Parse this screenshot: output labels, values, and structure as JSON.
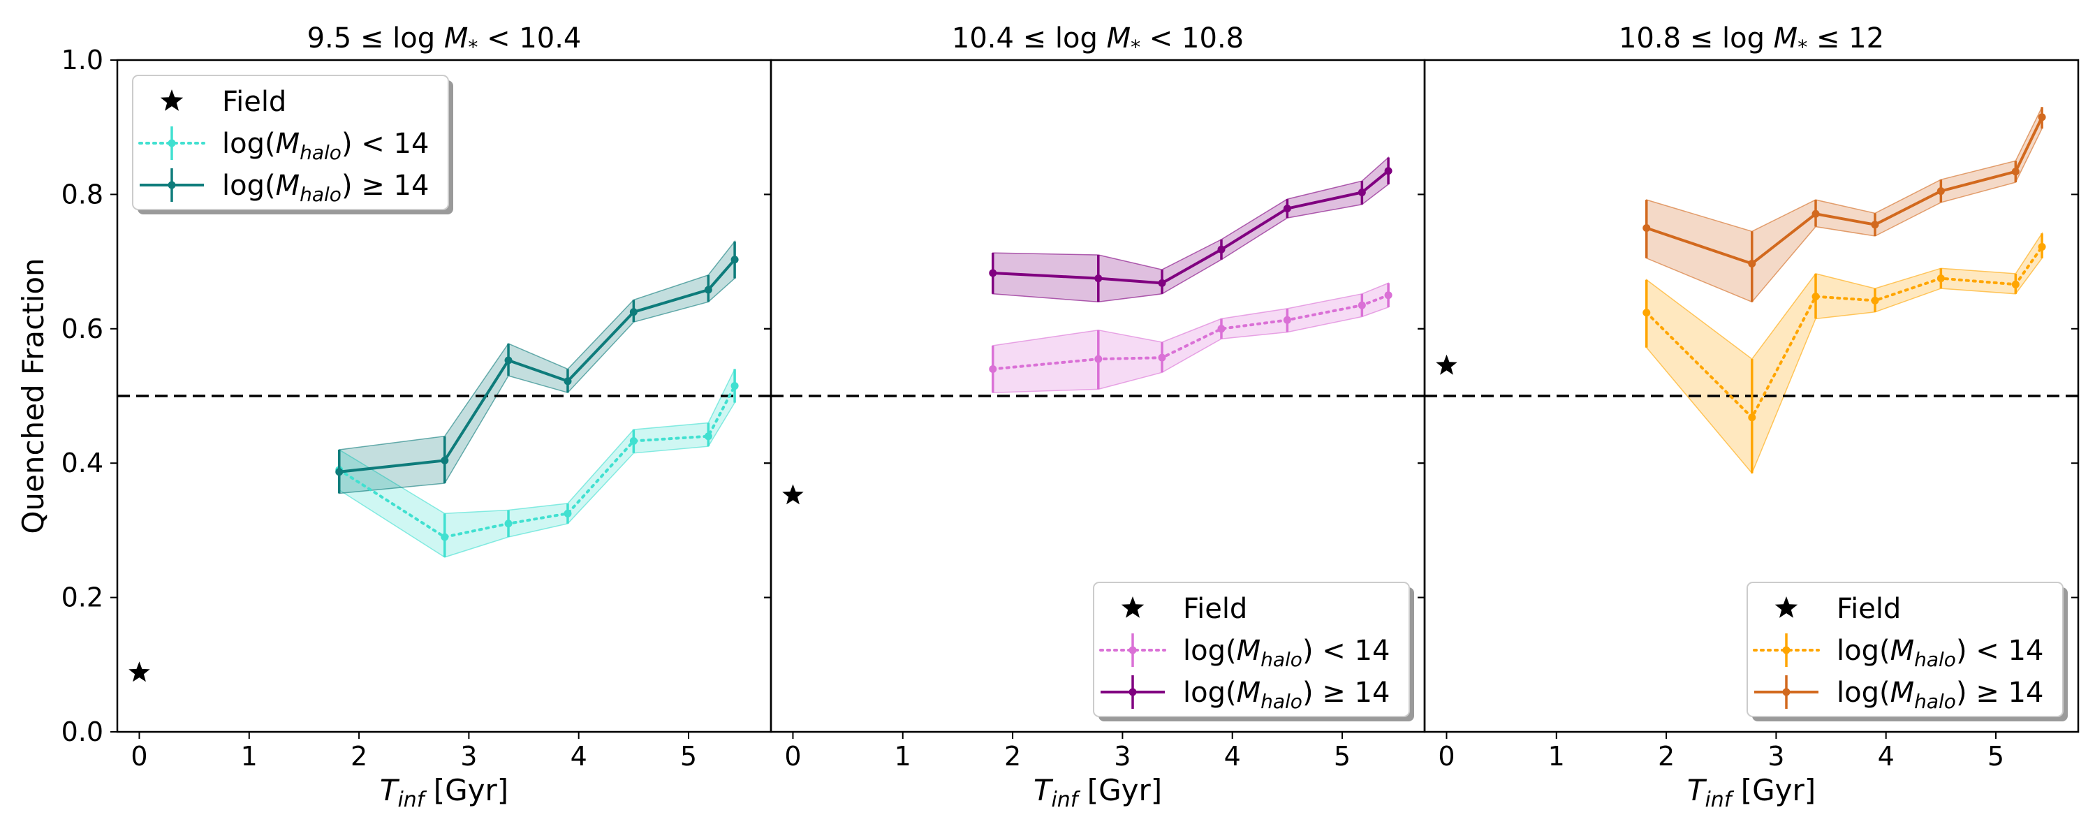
{
  "figure": {
    "ylabel": "Quenched Fraction",
    "xlabel": "T_inf [Gyr]",
    "xlabel_main": "T",
    "xlabel_sub": "inf",
    "xlabel_unit": " [Gyr]"
  },
  "chart_data": [
    {
      "type": "line",
      "title": "9.5 ≤ log M* < 10.4",
      "title_parts": [
        "9.5",
        " ≤ log ",
        "M",
        "*",
        " < 10.4"
      ],
      "xlabel": "T_inf [Gyr]",
      "ylabel": "Quenched Fraction",
      "xlim": [
        -0.2,
        5.75
      ],
      "ylim": [
        0,
        1
      ],
      "xticks": [
        0,
        1,
        2,
        3,
        4,
        5
      ],
      "yticks": [
        0.0,
        0.2,
        0.4,
        0.6,
        0.8,
        1.0
      ],
      "reference_line": {
        "y": 0.5,
        "style": "dashed"
      },
      "legend_position": "upper-left",
      "field": {
        "name": "Field",
        "x": 0,
        "y": 0.088
      },
      "series": [
        {
          "name": "log(M_halo) < 14",
          "name_parts": [
            "log(",
            "M",
            "halo",
            ") < 14"
          ],
          "style": "dotted",
          "color": "#40e0d0",
          "x": [
            1.82,
            2.78,
            3.36,
            3.9,
            4.5,
            5.18,
            5.42
          ],
          "y": [
            0.39,
            0.29,
            0.31,
            0.325,
            0.433,
            0.44,
            0.515
          ],
          "lower": [
            0.36,
            0.26,
            0.29,
            0.31,
            0.415,
            0.425,
            0.49
          ],
          "upper": [
            0.42,
            0.325,
            0.33,
            0.34,
            0.45,
            0.46,
            0.54
          ]
        },
        {
          "name": "log(M_halo) ≥ 14",
          "name_parts": [
            "log(",
            "M",
            "halo",
            ") ≥ 14"
          ],
          "style": "solid",
          "color": "#0e7c7b",
          "x": [
            1.82,
            2.78,
            3.36,
            3.9,
            4.5,
            5.18,
            5.42
          ],
          "y": [
            0.387,
            0.404,
            0.553,
            0.522,
            0.625,
            0.658,
            0.703
          ],
          "lower": [
            0.355,
            0.37,
            0.53,
            0.505,
            0.61,
            0.64,
            0.675
          ],
          "upper": [
            0.42,
            0.44,
            0.578,
            0.54,
            0.643,
            0.68,
            0.73
          ]
        }
      ]
    },
    {
      "type": "line",
      "title": "10.4 ≤ log M* < 10.8",
      "title_parts": [
        "10.4",
        " ≤ log ",
        "M",
        "*",
        " < 10.8"
      ],
      "xlabel": "T_inf [Gyr]",
      "xlim": [
        -0.2,
        5.75
      ],
      "ylim": [
        0,
        1
      ],
      "xticks": [
        0,
        1,
        2,
        3,
        4,
        5
      ],
      "yticks": [
        0.0,
        0.2,
        0.4,
        0.6,
        0.8,
        1.0
      ],
      "reference_line": {
        "y": 0.5,
        "style": "dashed"
      },
      "legend_position": "lower-right",
      "field": {
        "name": "Field",
        "x": 0,
        "y": 0.352
      },
      "series": [
        {
          "name": "log(M_halo) < 14",
          "name_parts": [
            "log(",
            "M",
            "halo",
            ") < 14"
          ],
          "style": "dotted",
          "color": "#da70d6",
          "x": [
            1.82,
            2.78,
            3.36,
            3.9,
            4.5,
            5.18,
            5.42
          ],
          "y": [
            0.54,
            0.555,
            0.557,
            0.6,
            0.613,
            0.635,
            0.65
          ],
          "lower": [
            0.505,
            0.51,
            0.535,
            0.585,
            0.595,
            0.618,
            0.632
          ],
          "upper": [
            0.575,
            0.598,
            0.58,
            0.615,
            0.63,
            0.652,
            0.668
          ]
        },
        {
          "name": "log(M_halo) ≥ 14",
          "name_parts": [
            "log(",
            "M",
            "halo",
            ") ≥ 14"
          ],
          "style": "solid",
          "color": "#800080",
          "x": [
            1.82,
            2.78,
            3.36,
            3.9,
            4.5,
            5.18,
            5.42
          ],
          "y": [
            0.683,
            0.675,
            0.668,
            0.718,
            0.779,
            0.803,
            0.835
          ],
          "lower": [
            0.652,
            0.64,
            0.652,
            0.703,
            0.765,
            0.785,
            0.815
          ],
          "upper": [
            0.713,
            0.71,
            0.688,
            0.733,
            0.793,
            0.82,
            0.855
          ]
        }
      ]
    },
    {
      "type": "line",
      "title": "10.8 ≤ log M* ≤ 12",
      "title_parts": [
        "10.8",
        " ≤ log ",
        "M",
        "*",
        " ≤ 12"
      ],
      "xlabel": "T_inf [Gyr]",
      "xlim": [
        -0.2,
        5.75
      ],
      "ylim": [
        0,
        1
      ],
      "xticks": [
        0,
        1,
        2,
        3,
        4,
        5
      ],
      "yticks": [
        0.0,
        0.2,
        0.4,
        0.6,
        0.8,
        1.0
      ],
      "reference_line": {
        "y": 0.5,
        "style": "dashed"
      },
      "legend_position": "lower-right",
      "field": {
        "name": "Field",
        "x": 0,
        "y": 0.545
      },
      "series": [
        {
          "name": "log(M_halo) < 14",
          "name_parts": [
            "log(",
            "M",
            "halo",
            ") < 14"
          ],
          "style": "dotted",
          "color": "#ffa500",
          "x": [
            1.82,
            2.78,
            3.36,
            3.9,
            4.5,
            5.18,
            5.42
          ],
          "y": [
            0.624,
            0.468,
            0.648,
            0.642,
            0.675,
            0.666,
            0.722
          ],
          "lower": [
            0.572,
            0.385,
            0.615,
            0.625,
            0.66,
            0.652,
            0.705
          ],
          "upper": [
            0.673,
            0.555,
            0.682,
            0.66,
            0.69,
            0.682,
            0.742
          ]
        },
        {
          "name": "log(M_halo) ≥ 14",
          "name_parts": [
            "log(",
            "M",
            "halo",
            ") ≥ 14"
          ],
          "style": "solid",
          "color": "#d2691e",
          "x": [
            1.82,
            2.78,
            3.36,
            3.9,
            4.5,
            5.18,
            5.42
          ],
          "y": [
            0.75,
            0.697,
            0.771,
            0.755,
            0.805,
            0.834,
            0.915
          ],
          "lower": [
            0.705,
            0.64,
            0.752,
            0.738,
            0.788,
            0.818,
            0.898
          ],
          "upper": [
            0.792,
            0.745,
            0.792,
            0.772,
            0.822,
            0.85,
            0.93
          ]
        }
      ]
    }
  ]
}
